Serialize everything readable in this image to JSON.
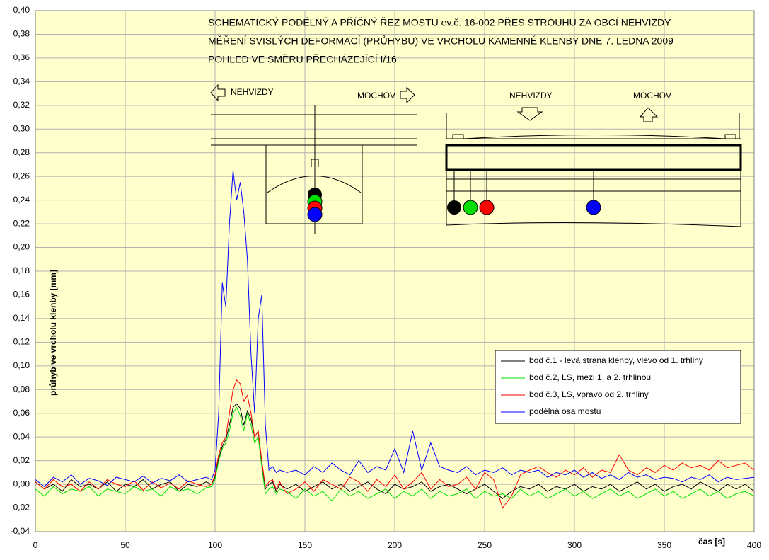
{
  "chart_data": {
    "type": "line",
    "title": [
      "SCHEMATICKÝ PODÉLNÝ A PŘÍČNÝ ŘEZ MOSTU ev.č. 16-002 PŘES STROUHU ZA OBCÍ NEHVIZDY",
      "MĚŘENÍ SVISLÝCH DEFORMACÍ (PRŮHYBU) VE VRCHOLU KAMENNÉ KLENBY DNE 7. LEDNA 2009",
      "POHLED VE SMĚRU PŘECHÁZEJÍCÍ I/16"
    ],
    "annotations": [
      "NEHVIZDY",
      "MOCHOV",
      "NEHVIZDY",
      "MOCHOV"
    ],
    "xlabel": "čas [s]",
    "ylabel": "průhyb ve vrcholu klenby [mm]",
    "xlim": [
      0,
      400
    ],
    "xticks": [
      0,
      50,
      100,
      150,
      200,
      250,
      300,
      350,
      400
    ],
    "ylim": [
      -0.04,
      0.4
    ],
    "yticks": [
      {
        "value": -0.04,
        "label": "-0,04"
      },
      {
        "value": -0.02,
        "label": "-0,02"
      },
      {
        "value": 0,
        "label": "0,00"
      },
      {
        "value": 0.02,
        "label": "0,02"
      },
      {
        "value": 0.04,
        "label": "0,04"
      },
      {
        "value": 0.06,
        "label": "0,06"
      },
      {
        "value": 0.08,
        "label": "0,08"
      },
      {
        "value": 0.1,
        "label": "0,10"
      },
      {
        "value": 0.12,
        "label": "0,12"
      },
      {
        "value": 0.14,
        "label": "0,14"
      },
      {
        "value": 0.16,
        "label": "0,16"
      },
      {
        "value": 0.18,
        "label": "0,18"
      },
      {
        "value": 0.2,
        "label": "0,20"
      },
      {
        "value": 0.22,
        "label": "0,22"
      },
      {
        "value": 0.24,
        "label": "0,24"
      },
      {
        "value": 0.26,
        "label": "0,26"
      },
      {
        "value": 0.28,
        "label": "0,28"
      },
      {
        "value": 0.3,
        "label": "0,30"
      },
      {
        "value": 0.32,
        "label": "0,32"
      },
      {
        "value": 0.34,
        "label": "0,34"
      },
      {
        "value": 0.36,
        "label": "0,36"
      },
      {
        "value": 0.38,
        "label": "0,38"
      },
      {
        "value": 0.4,
        "label": "0,40"
      }
    ],
    "grid": true,
    "legend": "right",
    "x": [
      0,
      5,
      10,
      15,
      20,
      25,
      30,
      35,
      40,
      45,
      50,
      55,
      60,
      65,
      70,
      75,
      80,
      85,
      90,
      95,
      98,
      100,
      102,
      104,
      106,
      108,
      110,
      112,
      114,
      116,
      118,
      120,
      122,
      124,
      126,
      128,
      130,
      132,
      134,
      136,
      140,
      145,
      150,
      155,
      160,
      165,
      170,
      175,
      180,
      185,
      190,
      195,
      200,
      205,
      210,
      215,
      220,
      225,
      230,
      235,
      240,
      245,
      250,
      255,
      260,
      265,
      270,
      275,
      280,
      285,
      290,
      295,
      300,
      305,
      310,
      315,
      320,
      325,
      330,
      335,
      340,
      345,
      350,
      355,
      360,
      365,
      370,
      375,
      380,
      385,
      390,
      395,
      400
    ],
    "series": [
      {
        "name": "bod č.1 - levá strana klenby, vlevo od 1. trhliny",
        "color": "#000000",
        "values": [
          0.002,
          -0.004,
          0.0,
          -0.006,
          0.004,
          -0.002,
          0.0,
          -0.004,
          0.002,
          -0.006,
          0.0,
          -0.002,
          0.004,
          -0.004,
          0.0,
          0.002,
          -0.006,
          0.0,
          -0.002,
          0.002,
          0.0,
          0.006,
          0.022,
          0.032,
          0.038,
          0.05,
          0.065,
          0.068,
          0.064,
          0.05,
          0.062,
          0.055,
          0.04,
          0.045,
          0.018,
          -0.004,
          0.0,
          0.002,
          -0.006,
          0.0,
          -0.004,
          0.0,
          -0.006,
          -0.002,
          0.002,
          -0.004,
          0.0,
          -0.006,
          -0.002,
          0.002,
          -0.004,
          -0.008,
          0.0,
          -0.004,
          -0.002,
          0.002,
          -0.006,
          -0.002,
          0.0,
          -0.004,
          -0.008,
          -0.004,
          0.0,
          -0.006,
          -0.012,
          -0.006,
          -0.002,
          -0.004,
          0.0,
          -0.006,
          -0.002,
          -0.004,
          0.0,
          -0.006,
          -0.002,
          -0.004,
          0.0,
          -0.006,
          -0.002,
          0.002,
          -0.004,
          0.0,
          -0.006,
          -0.002,
          0.0,
          -0.004,
          0.002,
          -0.002,
          -0.006,
          0.0,
          -0.004,
          0.0,
          -0.006
        ]
      },
      {
        "name": "bod č.2, LS, mezi 1. a 2. trhlinou",
        "color": "#00e000",
        "values": [
          -0.004,
          -0.01,
          -0.002,
          -0.008,
          -0.004,
          -0.006,
          -0.002,
          -0.01,
          -0.004,
          -0.006,
          -0.008,
          -0.002,
          -0.006,
          -0.004,
          -0.01,
          -0.002,
          -0.006,
          -0.004,
          -0.008,
          -0.003,
          -0.002,
          0.004,
          0.02,
          0.03,
          0.035,
          0.045,
          0.06,
          0.065,
          0.058,
          0.045,
          0.06,
          0.05,
          0.035,
          0.04,
          0.015,
          -0.008,
          -0.004,
          -0.002,
          -0.008,
          -0.004,
          -0.006,
          -0.012,
          -0.004,
          -0.01,
          -0.006,
          -0.014,
          -0.004,
          -0.01,
          -0.006,
          -0.012,
          -0.008,
          -0.004,
          -0.012,
          -0.006,
          -0.01,
          -0.004,
          -0.012,
          -0.006,
          -0.01,
          -0.008,
          -0.004,
          -0.012,
          -0.006,
          -0.01,
          -0.008,
          -0.012,
          -0.004,
          -0.01,
          -0.006,
          -0.012,
          -0.008,
          -0.004,
          -0.01,
          -0.006,
          -0.012,
          -0.008,
          -0.004,
          -0.01,
          -0.006,
          -0.012,
          -0.008,
          -0.004,
          -0.01,
          -0.006,
          -0.012,
          -0.008,
          -0.004,
          -0.01,
          -0.006,
          -0.012,
          -0.008,
          -0.006,
          -0.01
        ]
      },
      {
        "name": "bod č.3, LS, vpravo od 2. trhliny",
        "color": "#ff0000",
        "values": [
          0.002,
          -0.004,
          0.004,
          -0.002,
          0.0,
          -0.006,
          0.002,
          -0.004,
          0.004,
          0.0,
          -0.002,
          0.003,
          -0.005,
          0.002,
          -0.003,
          0.001,
          -0.004,
          0.003,
          0.0,
          -0.002,
          0.0,
          0.008,
          0.025,
          0.035,
          0.04,
          0.06,
          0.08,
          0.088,
          0.085,
          0.07,
          0.075,
          0.06,
          0.04,
          0.045,
          0.02,
          -0.002,
          0.002,
          0.004,
          -0.004,
          0.002,
          -0.008,
          -0.004,
          0.002,
          -0.006,
          0.004,
          0.0,
          -0.004,
          0.006,
          0.002,
          -0.006,
          0.004,
          -0.002,
          0.008,
          -0.004,
          0.002,
          0.01,
          -0.004,
          0.004,
          -0.002,
          0.0,
          0.006,
          -0.004,
          0.01,
          0.004,
          -0.02,
          -0.01,
          0.008,
          0.012,
          0.015,
          0.01,
          0.006,
          0.012,
          0.008,
          0.014,
          0.006,
          0.012,
          0.01,
          0.025,
          0.012,
          0.008,
          0.014,
          0.01,
          0.016,
          0.012,
          0.018,
          0.014,
          0.016,
          0.012,
          0.02,
          0.014,
          0.016,
          0.018,
          0.012
        ]
      },
      {
        "name": "podélná osa mostu",
        "color": "#0000ff",
        "values": [
          0.004,
          -0.002,
          0.006,
          0.002,
          0.008,
          0.0,
          0.005,
          0.003,
          -0.001,
          0.006,
          0.004,
          0.002,
          0.007,
          0.001,
          0.005,
          0.003,
          0.008,
          0.002,
          0.004,
          0.006,
          0.004,
          0.012,
          0.06,
          0.17,
          0.15,
          0.22,
          0.265,
          0.24,
          0.255,
          0.23,
          0.19,
          0.11,
          0.06,
          0.14,
          0.16,
          0.05,
          0.012,
          0.015,
          0.01,
          0.012,
          0.01,
          0.012,
          0.008,
          0.015,
          0.01,
          0.018,
          0.012,
          0.008,
          0.02,
          0.01,
          0.015,
          0.012,
          0.03,
          0.01,
          0.045,
          0.012,
          0.035,
          0.015,
          0.012,
          0.01,
          0.015,
          0.008,
          0.012,
          0.01,
          0.014,
          0.008,
          0.012,
          0.01,
          0.012,
          0.006,
          0.01,
          0.008,
          0.012,
          0.006,
          0.01,
          0.005,
          0.008,
          0.004,
          0.01,
          0.006,
          0.008,
          0.004,
          0.006,
          0.005,
          0.002,
          0.006,
          0.004,
          0.008,
          0.002,
          0.006,
          0.004,
          0.005,
          0.006
        ]
      }
    ]
  }
}
